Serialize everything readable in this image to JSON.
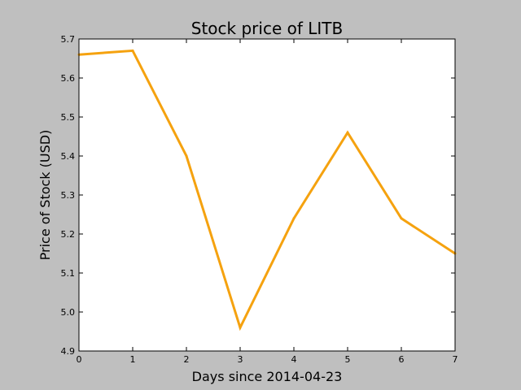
{
  "chart_data": {
    "type": "line",
    "title": "Stock price of LITB",
    "xlabel": "Days since 2014-04-23",
    "ylabel": "Price of Stock (USD)",
    "xlim": [
      0,
      7
    ],
    "ylim": [
      4.9,
      5.7
    ],
    "x_ticks": [
      "0",
      "1",
      "2",
      "3",
      "4",
      "5",
      "6",
      "7"
    ],
    "y_ticks": [
      "4.9",
      "5.0",
      "5.1",
      "5.2",
      "5.3",
      "5.4",
      "5.5",
      "5.6",
      "5.7"
    ],
    "grid": false,
    "legend": "none",
    "series": [
      {
        "color": "#f5a20f",
        "x": [
          0,
          1,
          2,
          3,
          4,
          5,
          6,
          7
        ],
        "y": [
          5.66,
          5.67,
          5.4,
          4.96,
          5.24,
          5.46,
          5.24,
          5.15
        ]
      }
    ]
  },
  "colors": {
    "background": "#bfbfbf",
    "plot_area": "#ffffff"
  }
}
